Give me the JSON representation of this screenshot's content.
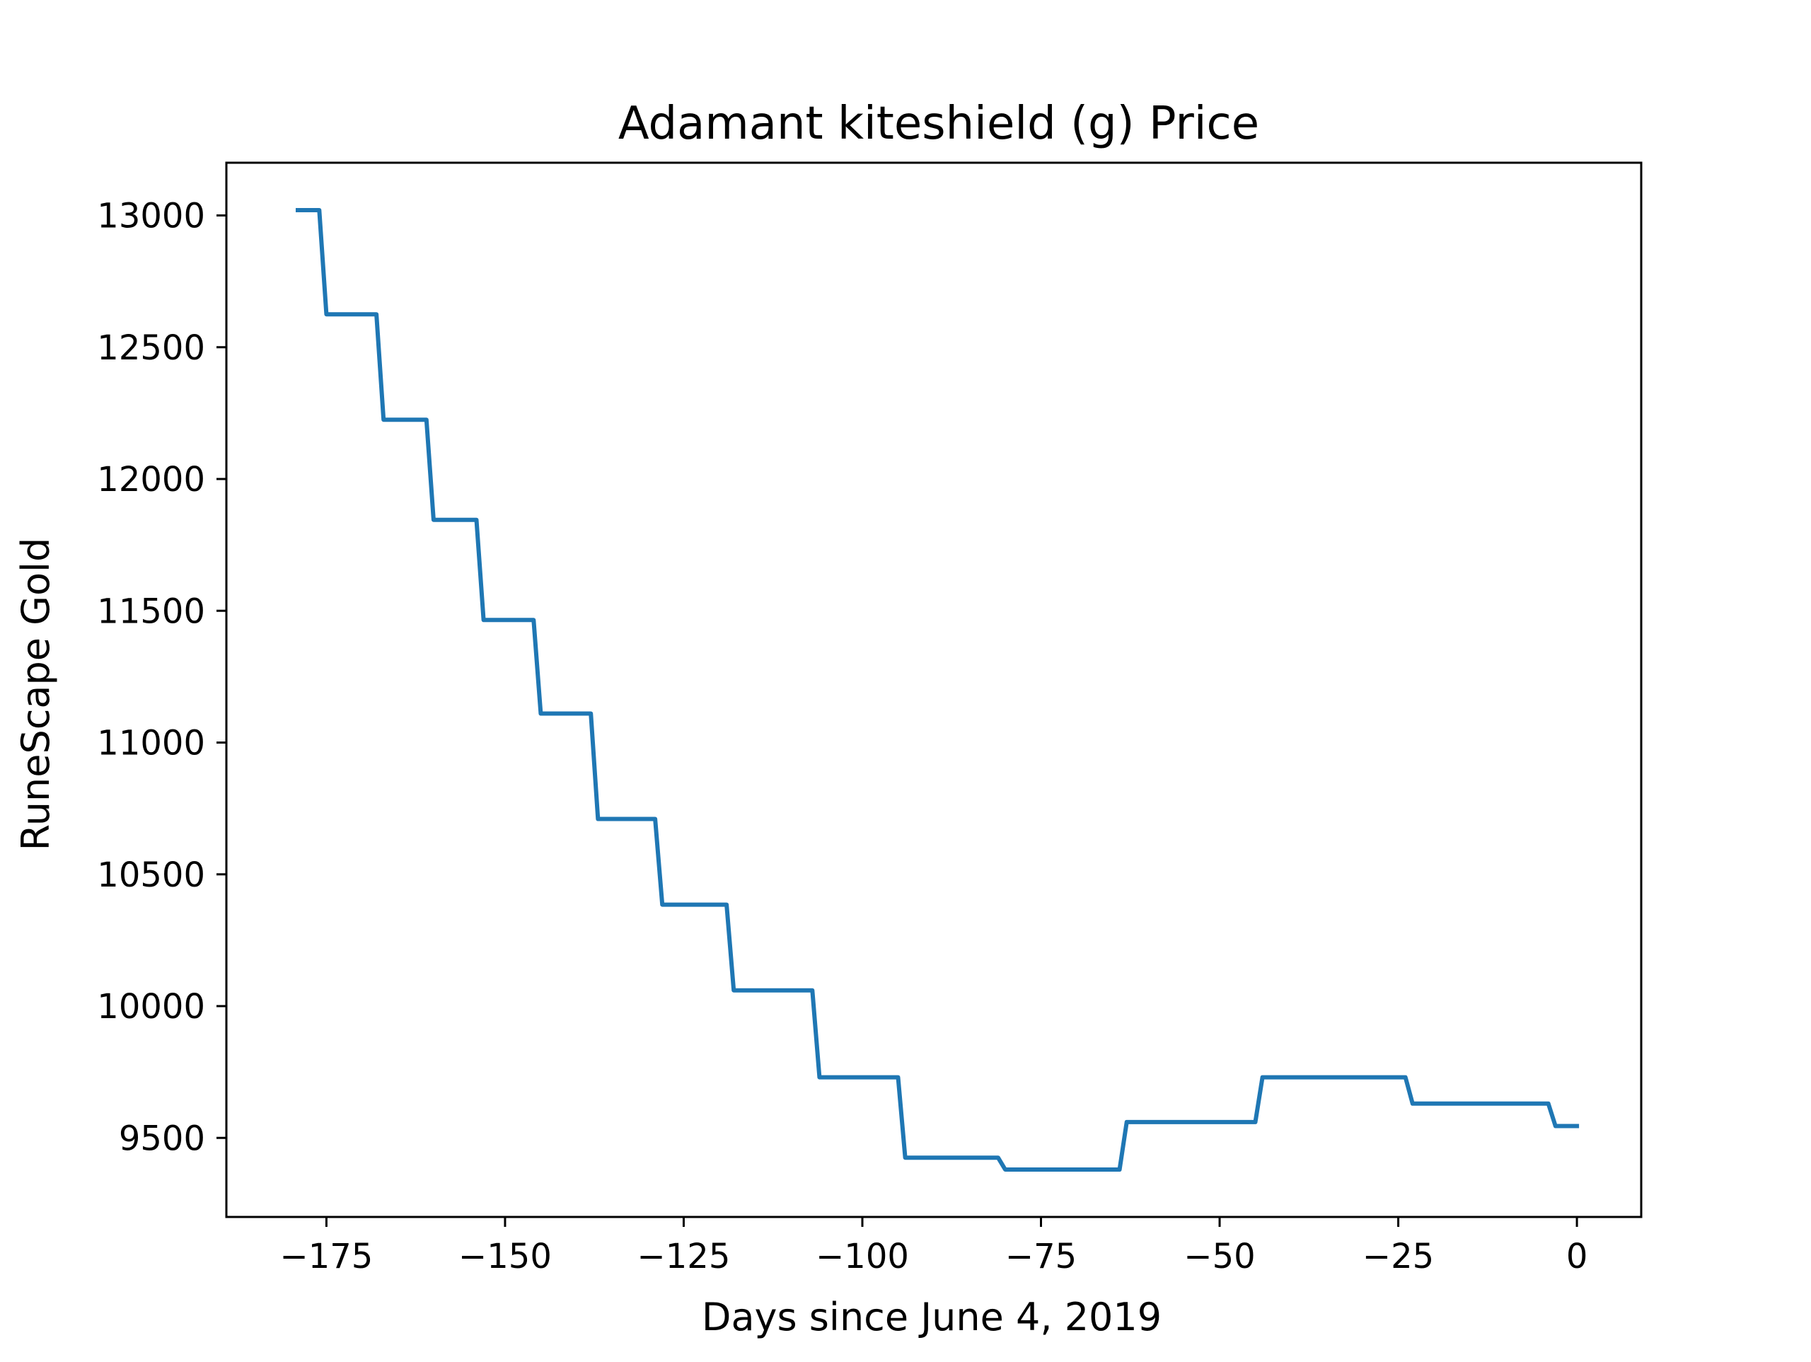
{
  "chart_data": {
    "type": "line",
    "title": "Adamant kiteshield (g) Price",
    "xlabel": "Days since June 4, 2019",
    "ylabel": "RuneScape Gold",
    "xlim": [
      -189,
      9
    ],
    "ylim": [
      9200,
      13200
    ],
    "x_ticks": [
      -175,
      -150,
      -125,
      -100,
      -75,
      -50,
      -25,
      0
    ],
    "x_tick_labels": [
      "−175",
      "−150",
      "−125",
      "−100",
      "−75",
      "−50",
      "−25",
      "0"
    ],
    "y_ticks": [
      9500,
      10000,
      10500,
      11000,
      11500,
      12000,
      12500,
      13000
    ],
    "y_tick_labels": [
      "9500",
      "10000",
      "10500",
      "11000",
      "11500",
      "12000",
      "12500",
      "13000"
    ],
    "grid": false,
    "series": [
      {
        "color": "#1f77b4",
        "x": [
          -179,
          -176,
          -175,
          -168,
          -167,
          -161,
          -160,
          -154,
          -153,
          -146,
          -145,
          -138,
          -137,
          -129,
          -128,
          -119,
          -118,
          -107,
          -106,
          -95,
          -94,
          -81,
          -80,
          -64,
          -63,
          -45,
          -44,
          -24,
          -23,
          -4,
          -3,
          0
        ],
        "y": [
          13020,
          13020,
          12625,
          12625,
          12225,
          12225,
          11845,
          11845,
          11465,
          11465,
          11110,
          11110,
          10710,
          10710,
          10385,
          10385,
          10060,
          10060,
          9730,
          9730,
          9425,
          9425,
          9380,
          9380,
          9560,
          9560,
          9730,
          9730,
          9630,
          9630,
          9545,
          9545
        ]
      }
    ]
  }
}
